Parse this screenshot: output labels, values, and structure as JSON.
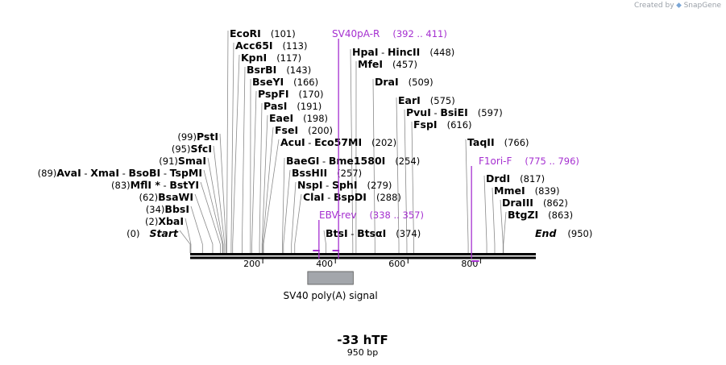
{
  "header": {
    "credit_prefix": "Created by",
    "credit_brand": "SnapGene"
  },
  "sequence": {
    "length": 950,
    "ticks": [
      200,
      400,
      600,
      800
    ]
  },
  "title": {
    "name": "-33 hTF",
    "length_label": "950 bp"
  },
  "ends": {
    "start": {
      "label": "Start",
      "pos": 0,
      "pos_label": "(0)"
    },
    "end": {
      "label": "End",
      "pos": 950,
      "pos_label": "(950)"
    }
  },
  "enzymes_right": [
    {
      "names": [
        "EcoRI"
      ],
      "pos": 101,
      "pos_label": "(101)"
    },
    {
      "names": [
        "Acc65I"
      ],
      "pos": 113,
      "pos_label": "(113)"
    },
    {
      "names": [
        "KpnI"
      ],
      "pos": 117,
      "pos_label": "(117)"
    },
    {
      "names": [
        "BsrBI"
      ],
      "pos": 143,
      "pos_label": "(143)"
    },
    {
      "names": [
        "BseYI"
      ],
      "pos": 166,
      "pos_label": "(166)"
    },
    {
      "names": [
        "PspFI"
      ],
      "pos": 170,
      "pos_label": "(170)"
    },
    {
      "names": [
        "PasI"
      ],
      "pos": 191,
      "pos_label": "(191)"
    },
    {
      "names": [
        "EaeI"
      ],
      "pos": 198,
      "pos_label": "(198)"
    },
    {
      "names": [
        "FseI"
      ],
      "pos": 200,
      "pos_label": "(200)"
    },
    {
      "names": [
        "AcuI",
        "Eco57MI"
      ],
      "pos": 202,
      "pos_label": "(202)"
    },
    {
      "names": [
        "BaeGI",
        "Bme1580I"
      ],
      "pos": 254,
      "pos_label": "(254)"
    },
    {
      "names": [
        "BssHII"
      ],
      "pos": 257,
      "pos_label": "(257)"
    },
    {
      "names": [
        "NspI",
        "SphI"
      ],
      "pos": 279,
      "pos_label": "(279)"
    },
    {
      "names": [
        "ClaI",
        "BspDI"
      ],
      "pos": 288,
      "pos_label": "(288)"
    },
    {
      "names": [
        "BtsI",
        "BtsαI"
      ],
      "pos": 374,
      "pos_label": "(374)"
    },
    {
      "names": [
        "HpaI",
        "HincII"
      ],
      "pos": 448,
      "pos_label": "(448)"
    },
    {
      "names": [
        "MfeI"
      ],
      "pos": 457,
      "pos_label": "(457)"
    },
    {
      "names": [
        "DraI"
      ],
      "pos": 509,
      "pos_label": "(509)"
    },
    {
      "names": [
        "EarI"
      ],
      "pos": 575,
      "pos_label": "(575)"
    },
    {
      "names": [
        "PvuI",
        "BsiEI"
      ],
      "pos": 597,
      "pos_label": "(597)"
    },
    {
      "names": [
        "FspI"
      ],
      "pos": 616,
      "pos_label": "(616)"
    },
    {
      "names": [
        "TaqII"
      ],
      "pos": 766,
      "pos_label": "(766)"
    },
    {
      "names": [
        "DrdI"
      ],
      "pos": 817,
      "pos_label": "(817)"
    },
    {
      "names": [
        "MmeI"
      ],
      "pos": 839,
      "pos_label": "(839)"
    },
    {
      "names": [
        "DraIII"
      ],
      "pos": 862,
      "pos_label": "(862)"
    },
    {
      "names": [
        "BtgZI"
      ],
      "pos": 863,
      "pos_label": "(863)"
    }
  ],
  "enzymes_left": [
    {
      "names": [
        "PstI"
      ],
      "pos": 99,
      "pos_label": "(99)"
    },
    {
      "names": [
        "SfcI"
      ],
      "pos": 95,
      "pos_label": "(95)"
    },
    {
      "names": [
        "SmaI"
      ],
      "pos": 91,
      "pos_label": "(91)"
    },
    {
      "names": [
        "AvaI",
        "XmaI",
        "BsoBI",
        "TspMI"
      ],
      "pos": 89,
      "pos_label": "(89)"
    },
    {
      "names": [
        "MflI *",
        "BstYI"
      ],
      "pos": 83,
      "pos_label": "(83)"
    },
    {
      "names": [
        "BsaWI"
      ],
      "pos": 62,
      "pos_label": "(62)"
    },
    {
      "names": [
        "BbsI"
      ],
      "pos": 34,
      "pos_label": "(34)"
    },
    {
      "names": [
        "XbaI"
      ],
      "pos": 2,
      "pos_label": "(2)"
    }
  ],
  "primers": [
    {
      "name": "SV40pA-R",
      "range_label": "(392 .. 411)",
      "start": 392,
      "end": 411
    },
    {
      "name": "EBV-rev",
      "range_label": "(338 .. 357)",
      "start": 338,
      "end": 357
    },
    {
      "name": "F1ori-F",
      "range_label": "(775 .. 796)",
      "start": 775,
      "end": 796
    }
  ],
  "features": [
    {
      "name": "SV40 poly(A) signal",
      "start": 326,
      "end": 447,
      "color": "#a3a6ab"
    }
  ],
  "colors": {
    "primer": "#a52fd0",
    "backbone": "#000000",
    "line": "#8a8a8a"
  }
}
